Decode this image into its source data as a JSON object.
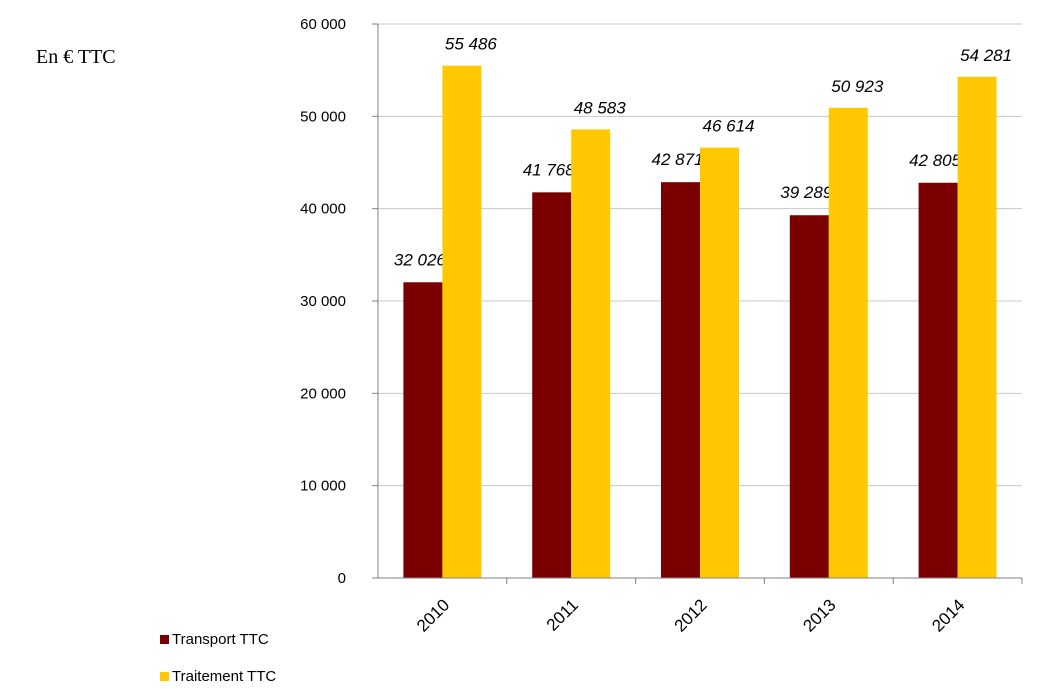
{
  "unit_label": "En € TTC",
  "colors": {
    "transport": "#7a0000",
    "traitement": "#ffc800",
    "grid": "#c8c8c8",
    "axis": "#808080",
    "text": "#000000"
  },
  "chart_data": {
    "type": "bar",
    "categories": [
      "2010",
      "2011",
      "2012",
      "2013",
      "2014"
    ],
    "series": [
      {
        "name": "Transport TTC",
        "values": [
          32026,
          41768,
          42871,
          39289,
          42805
        ],
        "labels": [
          "32 026",
          "41 768",
          "42 871",
          "39 289",
          "42 805"
        ]
      },
      {
        "name": "Traitement TTC",
        "values": [
          55486,
          48583,
          46614,
          50923,
          54281
        ],
        "labels": [
          "55 486",
          "48 583",
          "46 614",
          "50 923",
          "54 281"
        ]
      }
    ],
    "ylim": [
      0,
      60000
    ],
    "yticks": [
      0,
      10000,
      20000,
      30000,
      40000,
      50000,
      60000
    ],
    "ytick_labels": [
      "0",
      "10 000",
      "20 000",
      "30 000",
      "40 000",
      "50 000",
      "60 000"
    ],
    "grid": true,
    "legend_position": "bottom-left"
  }
}
